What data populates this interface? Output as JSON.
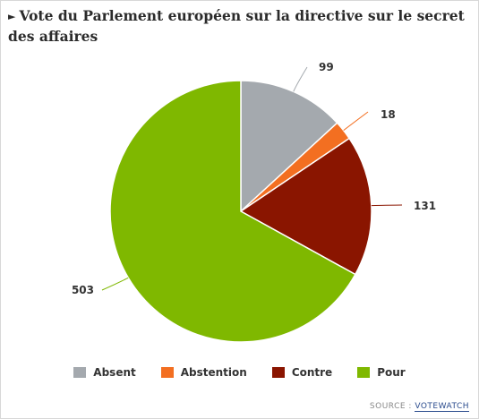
{
  "title_arrow": "►",
  "title": "Vote du Parlement européen sur la directive sur le secret des affaires",
  "source_prefix": "SOURCE :",
  "source_name": "VOTEWATCH",
  "chart_data": {
    "type": "pie",
    "title": "Vote du Parlement européen sur la directive sur le secret des affaires",
    "categories": [
      "Absent",
      "Abstention",
      "Contre",
      "Pour"
    ],
    "values": [
      99,
      18,
      131,
      503
    ],
    "colors": [
      "#a4a9ae",
      "#f36f21",
      "#8a1500",
      "#7fb800"
    ],
    "legend_position": "bottom",
    "data_labels": [
      "99",
      "18",
      "131",
      "503"
    ]
  }
}
